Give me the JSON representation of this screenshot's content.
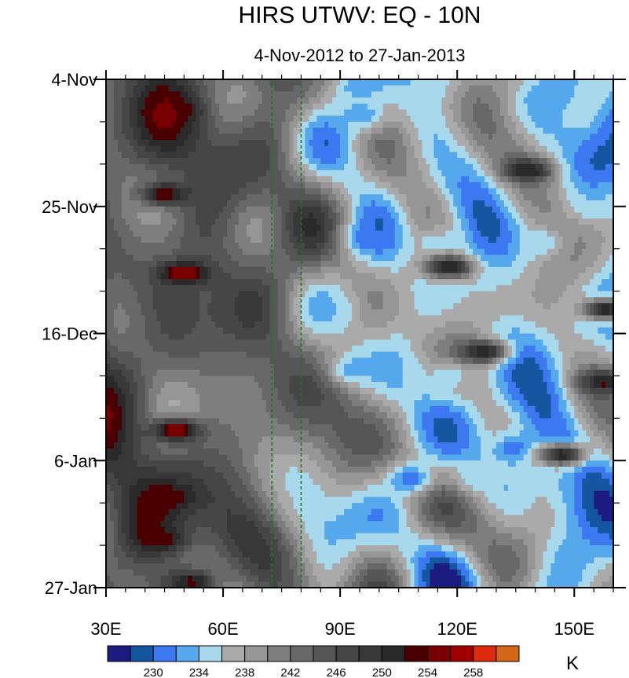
{
  "chart_data": {
    "type": "heatmap",
    "title": "HIRS UTWV: EQ - 10N",
    "subtitle": "4-Nov-2012 to 27-Jan-2013",
    "xlabel": "",
    "ylabel": "",
    "x_range": [
      30,
      160
    ],
    "x_ticks": [
      {
        "value": 30,
        "label": "30E"
      },
      {
        "value": 60,
        "label": "60E"
      },
      {
        "value": 90,
        "label": "90E"
      },
      {
        "value": 120,
        "label": "120E"
      },
      {
        "value": 150,
        "label": "150E"
      }
    ],
    "y_ticks": [
      {
        "day": 0,
        "label": "4-Nov"
      },
      {
        "day": 21,
        "label": "25-Nov"
      },
      {
        "day": 42,
        "label": "16-Dec"
      },
      {
        "day": 63,
        "label": "6-Jan"
      },
      {
        "day": 84,
        "label": "27-Jan"
      }
    ],
    "y_range_days": [
      0,
      84
    ],
    "reference_lines_lon": [
      72.5,
      80
    ],
    "reference_line_color": "#1a7a1a",
    "colorbar": {
      "unit": "K",
      "levels": [
        228,
        230,
        232,
        234,
        236,
        238,
        240,
        242,
        244,
        246,
        248,
        250,
        252,
        254,
        256,
        258,
        260
      ],
      "labels": [
        "230",
        "234",
        "238",
        "242",
        "246",
        "250",
        "254",
        "258"
      ],
      "colors": [
        "#1c1c80",
        "#1456a0",
        "#3c78f0",
        "#56a8ec",
        "#a8d8ec",
        "#aaaaaa",
        "#969696",
        "#7e7e7e",
        "#686868",
        "#565656",
        "#464646",
        "#383838",
        "#2a2a2a",
        "#4a0000",
        "#780000",
        "#a00000",
        "#e02a10",
        "#d4681a"
      ]
    },
    "cold_features": [
      {
        "lon": 95,
        "day": 1,
        "value": 232
      },
      {
        "lon": 112,
        "day": 1,
        "value": 234
      },
      {
        "lon": 145,
        "day": 2,
        "value": 232
      },
      {
        "lon": 96,
        "day": 6,
        "value": 232
      },
      {
        "lon": 155,
        "day": 21,
        "value": 234
      },
      {
        "lon": 97,
        "day": 26,
        "value": 230
      },
      {
        "lon": 115,
        "day": 27,
        "value": 234
      },
      {
        "lon": 142,
        "day": 27,
        "value": 234
      },
      {
        "lon": 88,
        "day": 38,
        "value": 234
      },
      {
        "lon": 93,
        "day": 48,
        "value": 232
      },
      {
        "lon": 105,
        "day": 49,
        "value": 234
      },
      {
        "lon": 118,
        "day": 49,
        "value": 234
      },
      {
        "lon": 135,
        "day": 61,
        "value": 230
      },
      {
        "lon": 108,
        "day": 66,
        "value": 230
      },
      {
        "lon": 125,
        "day": 66,
        "value": 234
      },
      {
        "lon": 145,
        "day": 66,
        "value": 234
      }
    ],
    "warm_features": [
      {
        "lon": 45,
        "day": 19,
        "value": 256
      },
      {
        "lon": 50,
        "day": 32,
        "value": 258
      },
      {
        "lon": 48,
        "day": 58,
        "value": 259
      },
      {
        "lon": 46,
        "day": 69,
        "value": 254
      },
      {
        "lon": 44,
        "day": 76,
        "value": 254
      },
      {
        "lon": 52,
        "day": 83,
        "value": 254
      },
      {
        "lon": 158,
        "day": 38,
        "value": 254
      },
      {
        "lon": 158,
        "day": 50,
        "value": 254
      },
      {
        "lon": 118,
        "day": 31,
        "value": 254
      },
      {
        "lon": 147,
        "day": 62,
        "value": 254
      },
      {
        "lon": 47,
        "day": 5,
        "value": 254
      },
      {
        "lon": 138,
        "day": 15,
        "value": 254
      },
      {
        "lon": 127,
        "day": 45,
        "value": 254
      }
    ]
  }
}
